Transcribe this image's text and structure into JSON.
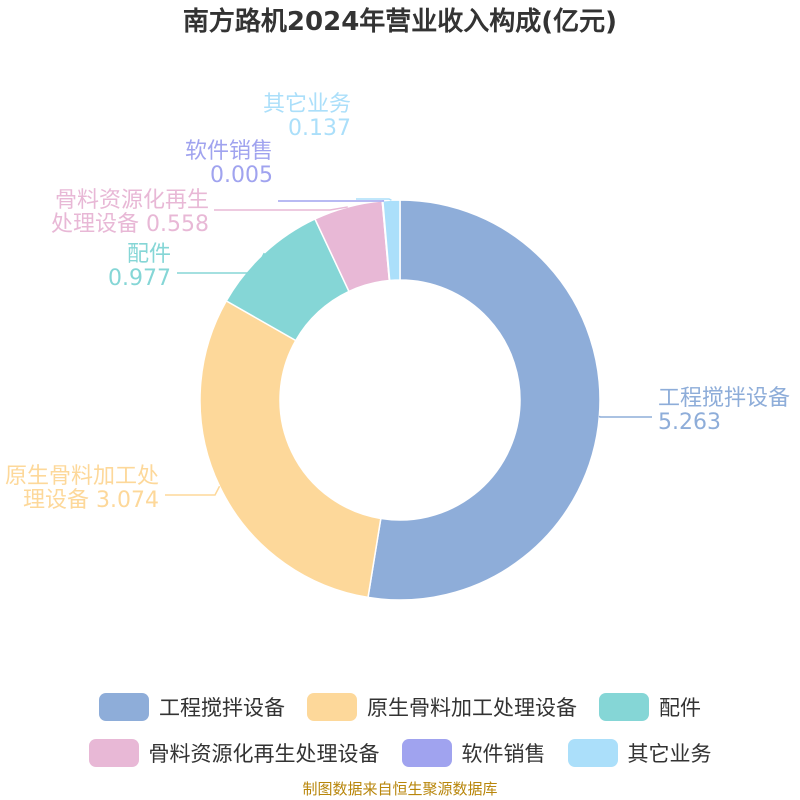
{
  "title": "南方路机2024年营业收入构成(亿元)",
  "source": "制图数据来自恒生聚源数据库",
  "colors": {
    "crusher": "#8eadd9",
    "aggregate": "#fdd89a",
    "parts": "#85d6d6",
    "recycle": "#e8b8d6",
    "software": "#a0a3ef",
    "other": "#abdffa"
  },
  "chart_data": {
    "type": "pie",
    "title": "南方路机2024年营业收入构成(亿元)",
    "unit": "亿元",
    "legend_position": "bottom",
    "slices": [
      {
        "name": "工程搅拌设备",
        "value": 5.263,
        "label_lines": [
          "工程搅拌设备",
          "5.263"
        ],
        "color": "#8eadd9"
      },
      {
        "name": "原生骨料加工处理设备",
        "value": 3.074,
        "label_lines": [
          "原生骨料加工处",
          "理设备 3.074"
        ],
        "color": "#fdd89a"
      },
      {
        "name": "配件",
        "value": 0.977,
        "label_lines": [
          "配件",
          "0.977"
        ],
        "color": "#85d6d6"
      },
      {
        "name": "骨料资源化再生处理设备",
        "value": 0.558,
        "label_lines": [
          "骨料资源化再生",
          "处理设备 0.558"
        ],
        "color": "#e8b8d6"
      },
      {
        "name": "软件销售",
        "value": 0.005,
        "label_lines": [
          "软件销售",
          "0.005"
        ],
        "color": "#a0a3ef"
      },
      {
        "name": "其它业务",
        "value": 0.137,
        "label_lines": [
          "其它业务",
          "0.137"
        ],
        "color": "#abdffa"
      }
    ]
  },
  "legend": {
    "rows": [
      [
        {
          "label": "工程搅拌设备",
          "color": "#8eadd9"
        },
        {
          "label": "原生骨料加工处理设备",
          "color": "#fdd89a"
        },
        {
          "label": "配件",
          "color": "#85d6d6"
        }
      ],
      [
        {
          "label": "骨料资源化再生处理设备",
          "color": "#e8b8d6"
        },
        {
          "label": "软件销售",
          "color": "#a0a3ef"
        },
        {
          "label": "其它业务",
          "color": "#abdffa"
        }
      ]
    ]
  }
}
